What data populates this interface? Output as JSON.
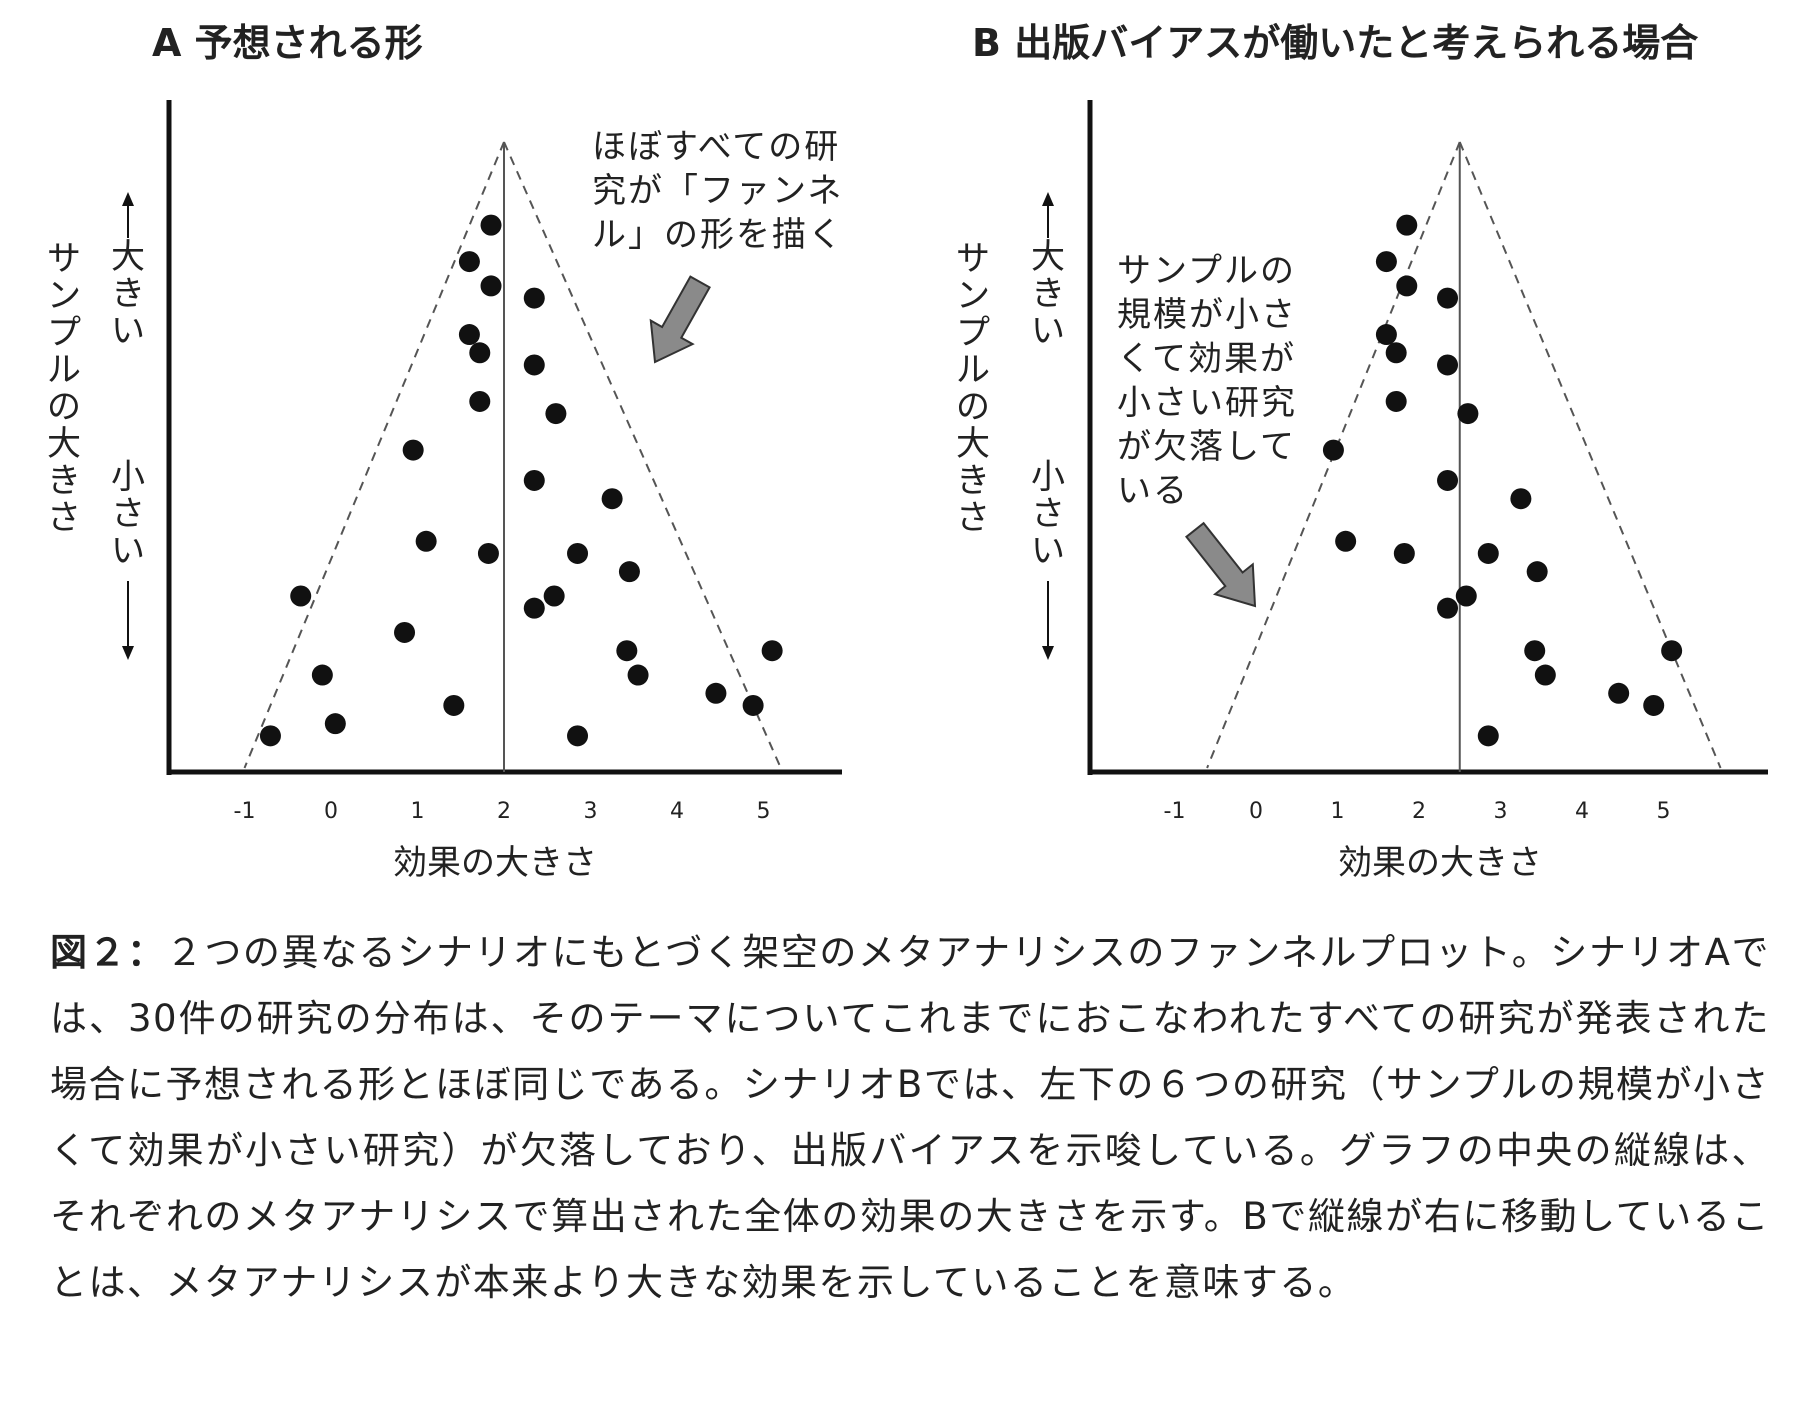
{
  "figure": {
    "panels": [
      {
        "title": "A 予想される形",
        "ylabel": "サンプルの大きさ",
        "ylabel_large": "大きい",
        "ylabel_small": "小さい",
        "xlabel": "効果の大きさ",
        "annotation_lines": [
          "ほぼすべての研",
          "究が「ファンネ",
          "ル」の形を描く"
        ]
      },
      {
        "title": "B 出版バイアスが働いたと考えられる場合",
        "ylabel": "サンプルの大きさ",
        "ylabel_large": "大きい",
        "ylabel_small": "小さい",
        "xlabel": "効果の大きさ",
        "annotation_lines": [
          "サンプルの",
          "規模が小さ",
          "くて効果が",
          "小さい研究",
          "が欠落して",
          "いる"
        ]
      }
    ]
  },
  "chart_data": [
    {
      "type": "scatter",
      "title": "A 予想される形",
      "xlabel": "効果の大きさ",
      "ylabel": "サンプルの大きさ",
      "x_ticks": [
        "-1",
        "0",
        "1",
        "2",
        "3",
        "4",
        "5"
      ],
      "xlim": [
        -1.6,
        6.0
      ],
      "mean_effect": 2.0,
      "funnel": {
        "apex": [
          2.0,
          1.0
        ],
        "base_left": -1.0,
        "base_right": 5.2
      },
      "y_note": "0 = smallest sample (bottom), 1 = largest sample (top)",
      "points": [
        {
          "x": 1.85,
          "y": 0.86
        },
        {
          "x": 1.6,
          "y": 0.8
        },
        {
          "x": 1.85,
          "y": 0.76
        },
        {
          "x": 2.35,
          "y": 0.74
        },
        {
          "x": 1.6,
          "y": 0.68
        },
        {
          "x": 1.72,
          "y": 0.65
        },
        {
          "x": 2.35,
          "y": 0.63
        },
        {
          "x": 1.72,
          "y": 0.57
        },
        {
          "x": 2.6,
          "y": 0.55
        },
        {
          "x": 0.95,
          "y": 0.49
        },
        {
          "x": 2.35,
          "y": 0.44
        },
        {
          "x": 3.25,
          "y": 0.41
        },
        {
          "x": 1.1,
          "y": 0.34
        },
        {
          "x": 1.82,
          "y": 0.32
        },
        {
          "x": 2.85,
          "y": 0.32
        },
        {
          "x": 3.45,
          "y": 0.29
        },
        {
          "x": -0.35,
          "y": 0.25
        },
        {
          "x": 2.58,
          "y": 0.25
        },
        {
          "x": 2.35,
          "y": 0.23
        },
        {
          "x": 0.85,
          "y": 0.19
        },
        {
          "x": 3.42,
          "y": 0.16
        },
        {
          "x": 5.1,
          "y": 0.16
        },
        {
          "x": -0.1,
          "y": 0.12
        },
        {
          "x": 3.55,
          "y": 0.12
        },
        {
          "x": 4.45,
          "y": 0.09
        },
        {
          "x": 4.88,
          "y": 0.07
        },
        {
          "x": 1.42,
          "y": 0.07
        },
        {
          "x": 0.05,
          "y": 0.04
        },
        {
          "x": -0.7,
          "y": 0.02
        },
        {
          "x": 2.85,
          "y": 0.02
        }
      ]
    },
    {
      "type": "scatter",
      "title": "B 出版バイアスが働いたと考えられる場合",
      "xlabel": "効果の大きさ",
      "ylabel": "サンプルの大きさ",
      "x_ticks": [
        "-1",
        "0",
        "1",
        "2",
        "3",
        "4",
        "5"
      ],
      "xlim": [
        -1.6,
        6.0
      ],
      "mean_effect": 2.5,
      "funnel": {
        "apex": [
          2.5,
          1.0
        ],
        "base_left": -0.6,
        "base_right": 5.7
      },
      "y_note": "0 = smallest sample (bottom), 1 = largest sample (top)",
      "points": [
        {
          "x": 1.85,
          "y": 0.86
        },
        {
          "x": 1.6,
          "y": 0.8
        },
        {
          "x": 1.85,
          "y": 0.76
        },
        {
          "x": 2.35,
          "y": 0.74
        },
        {
          "x": 1.6,
          "y": 0.68
        },
        {
          "x": 1.72,
          "y": 0.65
        },
        {
          "x": 2.35,
          "y": 0.63
        },
        {
          "x": 1.72,
          "y": 0.57
        },
        {
          "x": 2.6,
          "y": 0.55
        },
        {
          "x": 0.95,
          "y": 0.49
        },
        {
          "x": 2.35,
          "y": 0.44
        },
        {
          "x": 3.25,
          "y": 0.41
        },
        {
          "x": 1.1,
          "y": 0.34
        },
        {
          "x": 1.82,
          "y": 0.32
        },
        {
          "x": 2.85,
          "y": 0.32
        },
        {
          "x": 3.45,
          "y": 0.29
        },
        {
          "x": 2.58,
          "y": 0.25
        },
        {
          "x": 2.35,
          "y": 0.23
        },
        {
          "x": 3.42,
          "y": 0.16
        },
        {
          "x": 5.1,
          "y": 0.16
        },
        {
          "x": 3.55,
          "y": 0.12
        },
        {
          "x": 4.45,
          "y": 0.09
        },
        {
          "x": 4.88,
          "y": 0.07
        },
        {
          "x": 2.85,
          "y": 0.02
        }
      ]
    }
  ],
  "caption": {
    "lead": "図２：",
    "body": "２つの異なるシナリオにもとづく架空のメタアナリシスのファンネルプロット。シナリオAでは、30件の研究の分布は、そのテーマについてこれまでにおこなわれたすべての研究が発表された場合に予想される形とほぼ同じである。シナリオBでは、左下の６つの研究（サンプルの規模が小さくて効果が小さい研究）が欠落しており、出版バイアスを示唆している。グラフの中央の縦線は、それぞれのメタアナリシスで算出された全体の効果の大きさを示す。Bで縦線が右に移動していることは、メタアナリシスが本来より大きな効果を示していることを意味する。"
  },
  "colors": {
    "text": "#222222",
    "point": "#111111",
    "axis": "#111111",
    "funnel_line": "#555555",
    "arrow_fill": "#8a8a8a"
  }
}
